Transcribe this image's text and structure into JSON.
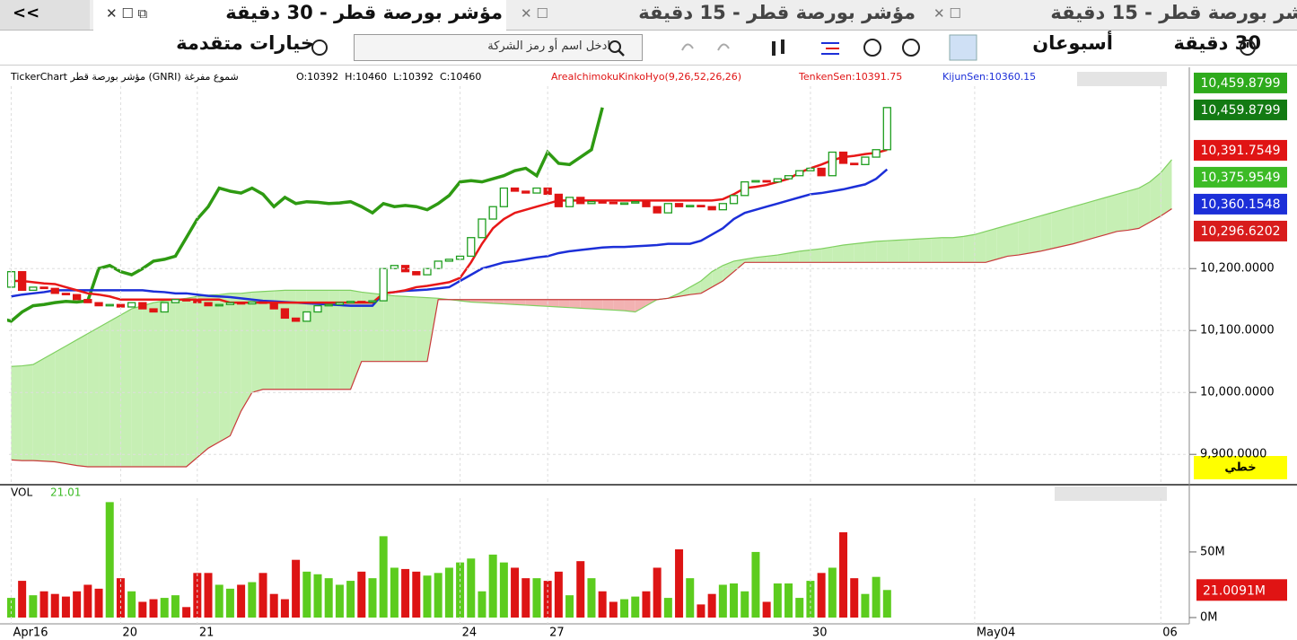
{
  "tab_overflow": "<<",
  "tabs": [
    {
      "title": "شر بورصة قطر - 15 دقيقة"
    },
    {
      "title": "مؤشر بورصة قطر - 15 دقيقة"
    },
    {
      "title": "مؤشر بورصة قطر - 30 دقيقة"
    }
  ],
  "toolbar": {
    "interval": "30 دقيقة",
    "period": "أسبوعان",
    "search_placeholder": "ادخل اسم أو رمز الشركة",
    "advanced": "خيارات متقدمة"
  },
  "chart_data": [
    {
      "type": "candlestick",
      "info": {
        "source": "TickerChart مؤشر بورصة قطر (GNRI)",
        "style": "شموع مفرغة",
        "ohlc": [
          "O:10392",
          "H:10460",
          "L:10392",
          "C:10460"
        ],
        "indicator": "AreaIchimokuKinkoHyo(9,26,52,26,26)",
        "tenkan_text": "TenkenSen:10391.75",
        "kijun_text": "KijunSen:10360.15"
      },
      "open": [
        10170,
        10195,
        10165,
        10170,
        10168,
        10160,
        10158,
        10150,
        10145,
        10140,
        10142,
        10138,
        10145,
        10135,
        10130,
        10145,
        10150,
        10148,
        10145,
        10140,
        10142,
        10145,
        10143,
        10146,
        10144,
        10135,
        10120,
        10115,
        10130,
        10140,
        10142,
        10145,
        10147,
        10146,
        10148,
        10200,
        10205,
        10195,
        10190,
        10200,
        10212,
        10215,
        10220,
        10250,
        10280,
        10300,
        10330,
        10325,
        10322,
        10330,
        10320,
        10300,
        10315,
        10305,
        10308,
        10307,
        10305,
        10306,
        10308,
        10300,
        10290,
        10305,
        10300,
        10302,
        10300,
        10295,
        10305,
        10318,
        10340,
        10342,
        10340,
        10345,
        10350,
        10358,
        10362,
        10350,
        10388,
        10370,
        10368,
        10380,
        10392
      ],
      "close": [
        10195,
        10165,
        10170,
        10168,
        10160,
        10158,
        10150,
        10145,
        10140,
        10142,
        10138,
        10145,
        10135,
        10130,
        10145,
        10150,
        10148,
        10145,
        10140,
        10142,
        10145,
        10143,
        10146,
        10144,
        10135,
        10120,
        10115,
        10130,
        10140,
        10142,
        10145,
        10147,
        10146,
        10148,
        10200,
        10205,
        10195,
        10190,
        10200,
        10212,
        10215,
        10220,
        10250,
        10280,
        10300,
        10330,
        10325,
        10322,
        10330,
        10320,
        10300,
        10315,
        10305,
        10308,
        10307,
        10305,
        10306,
        10308,
        10300,
        10290,
        10305,
        10300,
        10302,
        10300,
        10295,
        10305,
        10318,
        10340,
        10342,
        10340,
        10345,
        10350,
        10358,
        10362,
        10350,
        10388,
        10370,
        10368,
        10380,
        10392,
        10460
      ],
      "tenkan": [
        10180,
        10180,
        10178,
        10176,
        10175,
        10170,
        10165,
        10160,
        10158,
        10155,
        10150,
        10150,
        10150,
        10150,
        10150,
        10150,
        10150,
        10150,
        10150,
        10150,
        10145,
        10145,
        10145,
        10145,
        10145,
        10145,
        10145,
        10145,
        10145,
        10145,
        10145,
        10145,
        10145,
        10145,
        10160,
        10162,
        10165,
        10170,
        10172,
        10175,
        10178,
        10185,
        10210,
        10240,
        10265,
        10280,
        10290,
        10295,
        10300,
        10305,
        10310,
        10310,
        10310,
        10310,
        10310,
        10310,
        10310,
        10310,
        10310,
        10310,
        10310,
        10310,
        10310,
        10310,
        10310,
        10312,
        10320,
        10330,
        10332,
        10335,
        10340,
        10345,
        10355,
        10362,
        10368,
        10375,
        10380,
        10382,
        10385,
        10387,
        10391.75
      ],
      "kijun": [
        10155,
        10158,
        10160,
        10162,
        10165,
        10165,
        10165,
        10165,
        10165,
        10165,
        10165,
        10165,
        10165,
        10163,
        10162,
        10160,
        10160,
        10158,
        10156,
        10155,
        10154,
        10152,
        10150,
        10148,
        10147,
        10146,
        10145,
        10144,
        10143,
        10142,
        10141,
        10140,
        10140,
        10140,
        10160,
        10162,
        10164,
        10165,
        10166,
        10168,
        10170,
        10180,
        10190,
        10200,
        10205,
        10210,
        10212,
        10215,
        10218,
        10220,
        10225,
        10228,
        10230,
        10232,
        10234,
        10235,
        10235,
        10236,
        10237,
        10238,
        10240,
        10240,
        10240,
        10245,
        10255,
        10265,
        10280,
        10290,
        10295,
        10300,
        10305,
        10310,
        10315,
        10320,
        10322,
        10325,
        10328,
        10332,
        10336,
        10345,
        10360.15
      ],
      "span_a": [
        10042,
        10043,
        10045,
        10055,
        10065,
        10075,
        10085,
        10095,
        10105,
        10115,
        10125,
        10135,
        10140,
        10145,
        10148,
        10150,
        10152,
        10155,
        10157,
        10158,
        10160,
        10160,
        10162,
        10163,
        10164,
        10165,
        10165,
        10165,
        10165,
        10165,
        10165,
        10165,
        10162,
        10160,
        10158,
        10156,
        10155,
        10154,
        10153,
        10152,
        10150,
        10148,
        10146,
        10145,
        10144,
        10143,
        10142,
        10141,
        10140,
        10139,
        10138,
        10137,
        10136,
        10135,
        10134,
        10133,
        10132,
        10130,
        10140,
        10150,
        10152,
        10160,
        10170,
        10180,
        10195,
        10205,
        10212,
        10215,
        10218,
        10220,
        10222,
        10225,
        10228,
        10230,
        10232,
        10235,
        10238,
        10240,
        10242,
        10244,
        10245,
        10246,
        10247,
        10248,
        10249,
        10250,
        10250,
        10252,
        10255,
        10260,
        10265,
        10270,
        10275,
        10280,
        10285,
        10290,
        10295,
        10300,
        10305,
        10310,
        10315,
        10320,
        10325,
        10330,
        10340,
        10355,
        10375.9549
      ],
      "span_b": [
        9891,
        9890,
        9890,
        9889,
        9888,
        9885,
        9882,
        9880,
        9880,
        9880,
        9880,
        9880,
        9880,
        9880,
        9880,
        9880,
        9880,
        9895,
        9910,
        9920,
        9930,
        9970,
        10000,
        10005,
        10005,
        10005,
        10005,
        10005,
        10005,
        10005,
        10005,
        10005,
        10050,
        10050,
        10050,
        10050,
        10050,
        10050,
        10050,
        10150,
        10150,
        10150,
        10150,
        10150,
        10150,
        10150,
        10150,
        10150,
        10150,
        10150,
        10150,
        10150,
        10150,
        10150,
        10150,
        10150,
        10150,
        10150,
        10150,
        10150,
        10152,
        10155,
        10158,
        10160,
        10170,
        10180,
        10195,
        10210,
        10210,
        10210,
        10210,
        10210,
        10210,
        10210,
        10210,
        10210,
        10210,
        10210,
        10210,
        10210,
        10210,
        10210,
        10210,
        10210,
        10210,
        10210,
        10210,
        10210,
        10210,
        10210,
        10215,
        10220,
        10222,
        10225,
        10228,
        10232,
        10236,
        10240,
        10245,
        10250,
        10255,
        10260,
        10262,
        10265,
        10275,
        10285,
        10296.6202
      ],
      "displacement": 26,
      "up_color": "#1f9e1f",
      "down_color": "#e01414",
      "tenkan_color": "#e81818",
      "kijun_color": "#1c2fd8",
      "chikou_color": "#2e9a12",
      "cloud_up": "#c6efb4",
      "cloud_down": "#f2b2b2",
      "span_a_color": "#7fd060",
      "span_b_color": "#c83a3a",
      "xlim": [
        -0.2,
        107.6
      ],
      "xticks": [
        {
          "value": 0,
          "label": "Apr16"
        },
        {
          "value": 10,
          "label": "20"
        },
        {
          "value": 17,
          "label": "21"
        },
        {
          "value": 41,
          "label": "24"
        },
        {
          "value": 49,
          "label": "27"
        },
        {
          "value": 73,
          "label": "30"
        },
        {
          "value": 88,
          "label": "May04"
        },
        {
          "value": 105,
          "label": "06"
        }
      ],
      "ylim": [
        9851,
        10525
      ],
      "yticks": [
        {
          "value": 9900,
          "label": "9,900.0000"
        },
        {
          "value": 10000,
          "label": "10,000.0000"
        },
        {
          "value": 10100,
          "label": "10,100.0000"
        },
        {
          "value": 10200,
          "label": "10,200.0000"
        }
      ],
      "grid": true,
      "price_labels": [
        {
          "value": 10459.8799,
          "label": "10,459.8799",
          "color": "#2eaa1c"
        },
        {
          "value": 10459.8799,
          "label": "10,459.8799",
          "color": "#137a13"
        },
        {
          "value": 10391.7549,
          "label": "10,391.7549",
          "color": "#e01414"
        },
        {
          "value": 10375.9549,
          "label": "10,375.9549",
          "color": "#3cbb26"
        },
        {
          "value": 10360.1548,
          "label": "10,360.1548",
          "color": "#1c2fd8"
        },
        {
          "value": 10296.6202,
          "label": "10,296.6202",
          "color": "#d81c1c"
        }
      ],
      "scale_mode": "خطي"
    },
    {
      "type": "bar",
      "title": "VOL",
      "last_text": "21.01",
      "values": [
        15,
        28,
        17,
        20,
        18,
        16,
        20,
        25,
        22,
        88,
        30,
        20,
        12,
        14,
        15,
        17,
        8,
        34,
        34,
        25,
        22,
        25,
        27,
        34,
        18,
        14,
        44,
        35,
        33,
        30,
        25,
        28,
        35,
        30,
        62,
        38,
        37,
        35,
        32,
        34,
        38,
        42,
        45,
        20,
        48,
        42,
        38,
        30,
        30,
        28,
        35,
        17,
        43,
        30,
        20,
        12,
        14,
        16,
        20,
        38,
        15,
        52,
        30,
        10,
        18,
        25,
        26,
        20,
        50,
        12,
        26,
        26,
        15,
        28,
        34,
        38,
        65,
        30,
        18,
        31,
        21.0091
      ],
      "ylim": [
        0,
        91
      ],
      "yticks": [
        {
          "value": 0,
          "label": "0M"
        },
        {
          "value": 50,
          "label": "50M"
        }
      ],
      "last_label": {
        "value": 21.0091,
        "label": "21.0091M",
        "color": "#e01414"
      }
    }
  ]
}
